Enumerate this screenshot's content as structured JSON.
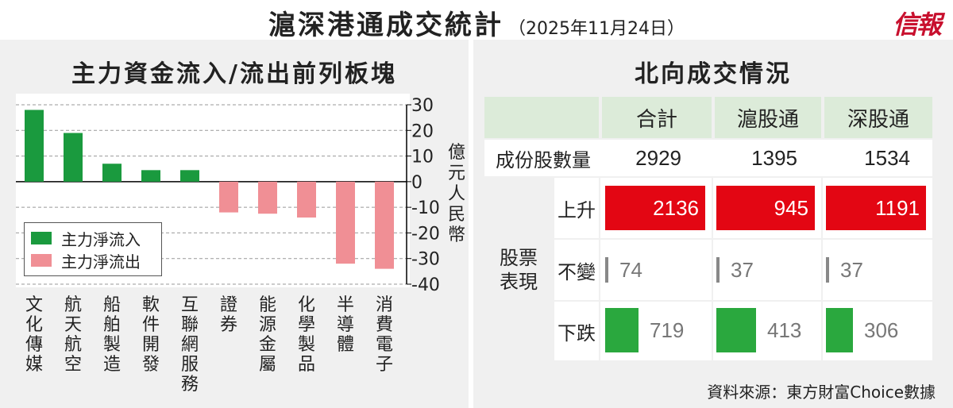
{
  "header": {
    "title": "滬深港通成交統計",
    "date": "（2025年11月24日）",
    "brand": "信報"
  },
  "left": {
    "title": "主力資金流入/流出前列板塊",
    "unit": "億元人民幣",
    "legend": {
      "inflow": "主力淨流入",
      "outflow": "主力淨流出"
    }
  },
  "right": {
    "title": "北向成交情況",
    "columns": [
      "合計",
      "滬股通",
      "深股通"
    ],
    "constituent_label": "成份股數量",
    "constituents": [
      "2929",
      "1395",
      "1534"
    ],
    "group_label": "股票表現",
    "rows": [
      {
        "label": "上升",
        "values": [
          "2136",
          "945",
          "1191"
        ]
      },
      {
        "label": "不變",
        "values": [
          "74",
          "37",
          "37"
        ]
      },
      {
        "label": "下跌",
        "values": [
          "719",
          "413",
          "306"
        ]
      }
    ]
  },
  "source": "資料來源：東方財富Choice數據",
  "colors": {
    "inflow": "#1a9a3e",
    "outflow": "#f08f95",
    "up": "#e30613",
    "flat": "#888888",
    "down": "#2aa83e",
    "header_bg": "#dcebd9",
    "panel_bg": "#f0f0f0"
  },
  "chart_data": [
    {
      "type": "bar",
      "title": "主力資金流入/流出前列板塊",
      "ylabel": "億元人民幣",
      "ylim": [
        -40,
        30
      ],
      "yticks": [
        30,
        20,
        10,
        0,
        -10,
        -20,
        -30,
        -40
      ],
      "grid": true,
      "legend_position": "lower-left",
      "categories": [
        "文化傳媒",
        "航天航空",
        "船舶製造",
        "軟件開發",
        "互聯網服務",
        "證券",
        "能源金屬",
        "化學製品",
        "半導體",
        "消費電子"
      ],
      "series": [
        {
          "name": "主力淨流入",
          "values": [
            28,
            19,
            7,
            4.5,
            4.5,
            null,
            null,
            null,
            null,
            null
          ]
        },
        {
          "name": "主力淨流出",
          "values": [
            null,
            null,
            null,
            null,
            null,
            -12,
            -12.5,
            -14,
            -32,
            -34
          ]
        }
      ]
    },
    {
      "type": "table",
      "title": "北向成交情況",
      "columns": [
        "合計",
        "滬股通",
        "深股通"
      ],
      "rows": [
        {
          "label": "成份股數量",
          "values": [
            2929,
            1395,
            1534
          ]
        },
        {
          "label": "上升",
          "values": [
            2136,
            945,
            1191
          ]
        },
        {
          "label": "不變",
          "values": [
            74,
            37,
            37
          ]
        },
        {
          "label": "下跌",
          "values": [
            719,
            413,
            306
          ]
        }
      ]
    }
  ]
}
